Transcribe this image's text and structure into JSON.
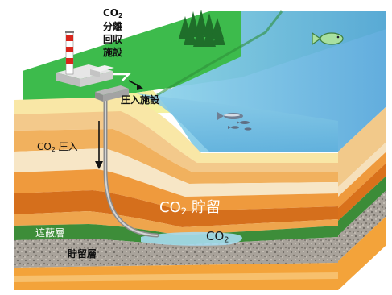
{
  "labels": {
    "facility_co2": "CO",
    "facility_co2_sub": "2",
    "facility_line1": "分離",
    "facility_line2": "回収",
    "facility_line3": "施設",
    "injection_facility": "圧入施設",
    "injection_co2": "CO",
    "injection_co2_sub": "2",
    "injection_text": "圧入",
    "storage_co2": "CO",
    "storage_co2_sub": "2",
    "storage_text": "貯留",
    "plume_co2": "CO",
    "plume_co2_sub": "2",
    "seal_layer": "遮蔽層",
    "reservoir_layer": "貯留層"
  },
  "colors": {
    "land": "#33b24a",
    "sea": "#7fc9e6",
    "sea_deep": "#4fa5d6",
    "rock_gravel": "#9a9a9a",
    "seal_green": "#3a8a3a",
    "orange_layer": "#e07b1a"
  },
  "icons": [
    "chimney-icon",
    "trees-icon",
    "fish-icon",
    "fish-school-icon",
    "arrow-down-icon"
  ]
}
